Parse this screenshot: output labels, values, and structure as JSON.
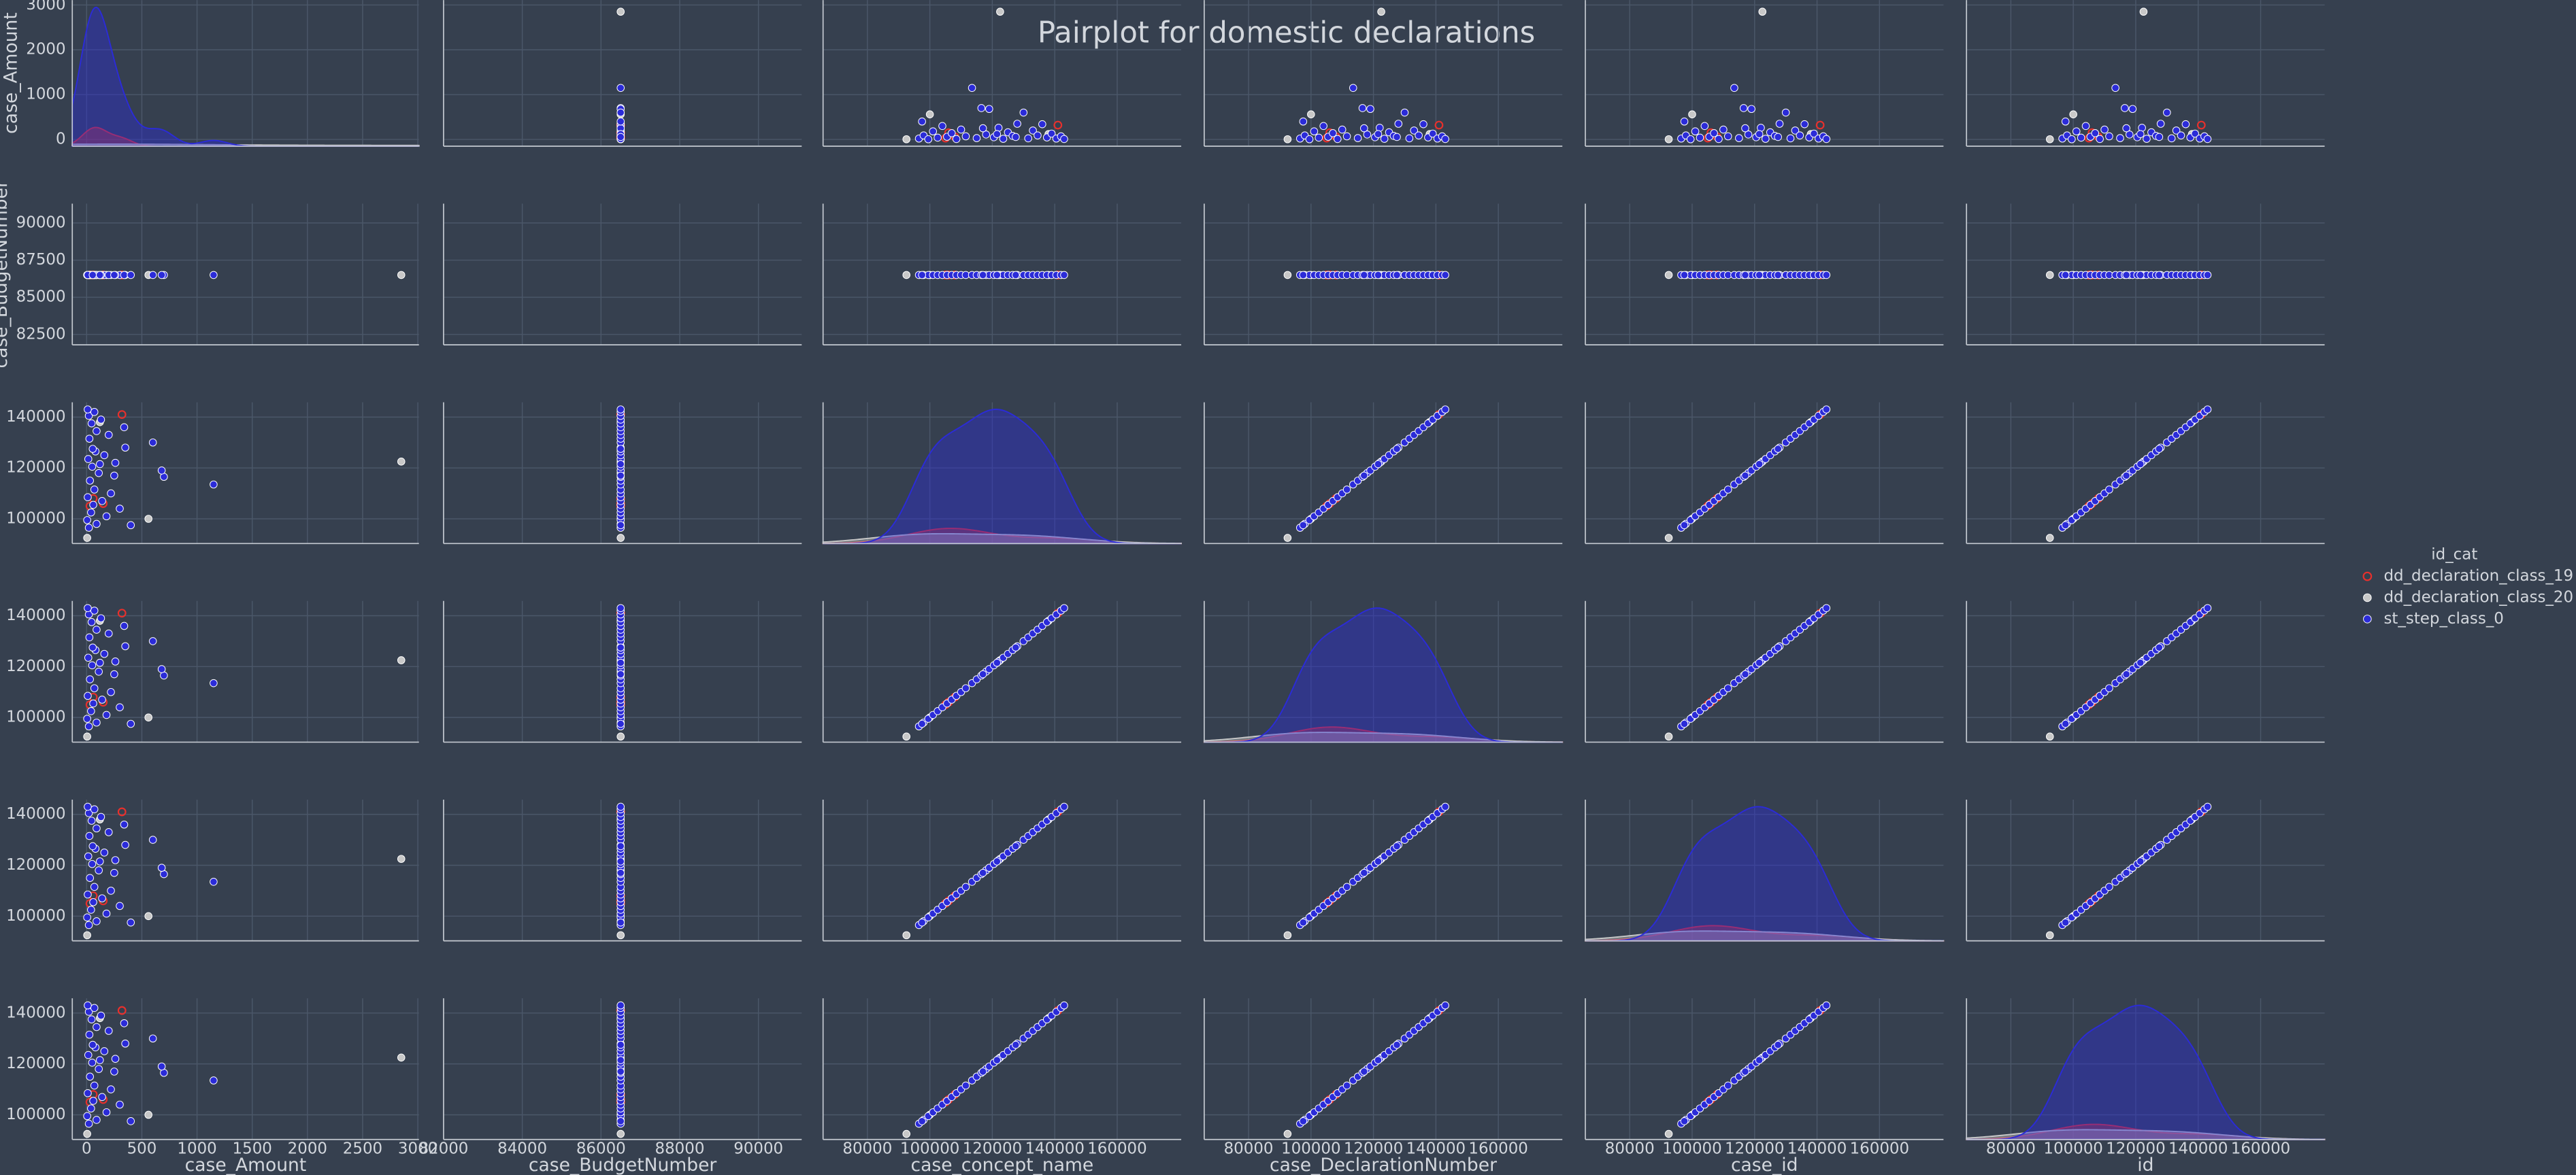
{
  "chart_data": {
    "type": "pairplot",
    "title": "Pairplot for domestic declarations",
    "legend_title": "id_cat",
    "legend_position": "right",
    "grid": true,
    "variables": [
      {
        "name": "case_Amount",
        "xlim": [
          -130,
          3010
        ],
        "xticks": [
          0,
          500,
          1000,
          1500,
          2000,
          2500,
          3000
        ],
        "ylim": [
          -150,
          3110
        ],
        "yticks": [
          0,
          1000,
          2000,
          3000
        ]
      },
      {
        "name": "case_BudgetNumber",
        "xlim": [
          82000,
          91100
        ],
        "xticks": [
          82000,
          84000,
          86000,
          88000,
          90000
        ],
        "ylim": [
          81800,
          91300
        ],
        "yticks": [
          82500,
          85000,
          87500,
          90000
        ]
      },
      {
        "name": "case_concept_name",
        "xlim": [
          65800,
          180500
        ],
        "xticks": [
          80000,
          100000,
          120000,
          140000,
          160000
        ],
        "ylim": [
          90300,
          145800
        ],
        "yticks": [
          100000,
          120000,
          140000
        ]
      },
      {
        "name": "case_DeclarationNumber",
        "xlim": [
          65800,
          180500
        ],
        "xticks": [
          80000,
          100000,
          120000,
          140000,
          160000
        ],
        "ylim": [
          90300,
          145800
        ],
        "yticks": [
          100000,
          120000,
          140000
        ]
      },
      {
        "name": "case_id",
        "xlim": [
          65800,
          180500
        ],
        "xticks": [
          80000,
          100000,
          120000,
          140000,
          160000
        ],
        "ylim": [
          90300,
          145800
        ],
        "yticks": [
          100000,
          120000,
          140000
        ]
      },
      {
        "name": "id",
        "xlim": [
          65800,
          180500
        ],
        "xticks": [
          80000,
          100000,
          120000,
          140000,
          160000
        ],
        "ylim": [
          90300,
          145800
        ],
        "yticks": [
          100000,
          120000,
          140000
        ]
      }
    ],
    "series": [
      {
        "name": "dd_declaration_class_19",
        "color": "#e8302c",
        "hollow": true,
        "columns": [
          [
            320,
            150,
            60,
            30
          ],
          [
            86500,
            86500,
            86500,
            86500
          ],
          [
            141000,
            106000,
            108000,
            105000
          ],
          [
            141000,
            106000,
            108000,
            105000
          ],
          [
            141000,
            106000,
            108000,
            105000
          ],
          [
            141000,
            106000,
            108000,
            105000
          ]
        ]
      },
      {
        "name": "dd_declaration_class_20",
        "color": "#c8c8c8",
        "columns": [
          [
            5,
            2850,
            560,
            120
          ],
          [
            86500,
            86500,
            86500,
            86500
          ],
          [
            92500,
            122500,
            100000,
            138000
          ],
          [
            92500,
            122500,
            100000,
            138000
          ],
          [
            92500,
            122500,
            100000,
            138000
          ],
          [
            92500,
            122500,
            100000,
            138000
          ]
        ]
      },
      {
        "name": "st_step_class_0",
        "color": "#2b2bd8",
        "columns": [
          [
            20,
            90,
            5,
            180,
            40,
            300,
            60,
            140,
            10,
            220,
            70,
            1150,
            30,
            700,
            110,
            680,
            50,
            260,
            15,
            160,
            80,
            350,
            600,
            25,
            200,
            90,
            340,
            45,
            130,
            20,
            70,
            10,
            250,
            400,
            120,
            55
          ],
          [
            86500,
            86500,
            86500,
            86500,
            86500,
            86500,
            86500,
            86500,
            86500,
            86500,
            86500,
            86500,
            86500,
            86500,
            86500,
            86500,
            86500,
            86500,
            86500,
            86500,
            86500,
            86500,
            86500,
            86500,
            86500,
            86500,
            86500,
            86500,
            86500,
            86500,
            86500,
            86500,
            86500,
            86500,
            86500,
            86500
          ],
          [
            96500,
            98000,
            99500,
            101000,
            102500,
            104000,
            105500,
            107000,
            108500,
            110000,
            111500,
            113500,
            115000,
            116500,
            118000,
            119000,
            120500,
            122000,
            123500,
            125000,
            126500,
            128000,
            130000,
            131500,
            133000,
            134500,
            136000,
            137500,
            139000,
            140500,
            142000,
            143000,
            117000,
            97500,
            121500,
            127500
          ],
          [
            96500,
            98000,
            99500,
            101000,
            102500,
            104000,
            105500,
            107000,
            108500,
            110000,
            111500,
            113500,
            115000,
            116500,
            118000,
            119000,
            120500,
            122000,
            123500,
            125000,
            126500,
            128000,
            130000,
            131500,
            133000,
            134500,
            136000,
            137500,
            139000,
            140500,
            142000,
            143000,
            117000,
            97500,
            121500,
            127500
          ],
          [
            96500,
            98000,
            99500,
            101000,
            102500,
            104000,
            105500,
            107000,
            108500,
            110000,
            111500,
            113500,
            115000,
            116500,
            118000,
            119000,
            120500,
            122000,
            123500,
            125000,
            126500,
            128000,
            130000,
            131500,
            133000,
            134500,
            136000,
            137500,
            139000,
            140500,
            142000,
            143000,
            117000,
            97500,
            121500,
            127500
          ],
          [
            96500,
            98000,
            99500,
            101000,
            102500,
            104000,
            105500,
            107000,
            108500,
            110000,
            111500,
            113500,
            115000,
            116500,
            118000,
            119000,
            120500,
            122000,
            123500,
            125000,
            126500,
            128000,
            130000,
            131500,
            133000,
            134500,
            136000,
            137500,
            139000,
            140500,
            142000,
            143000,
            117000,
            97500,
            121500,
            127500
          ]
        ]
      }
    ]
  }
}
